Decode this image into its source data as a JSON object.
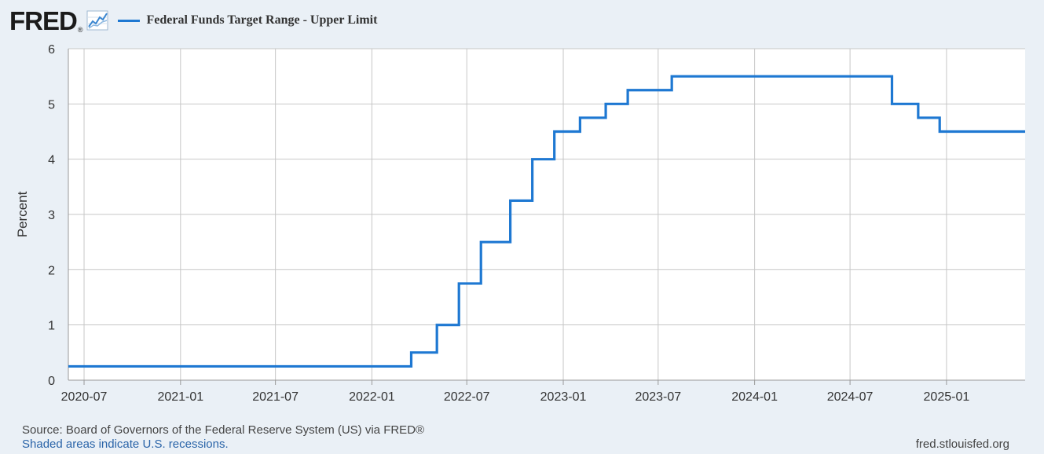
{
  "header": {
    "logo_text": "FRED",
    "logo_reg": "®",
    "logo_icon": "line-graph-icon",
    "series_color": "#1e78d2"
  },
  "footer": {
    "source": "Source: Board of Governors of the Federal Reserve System (US) via FRED®",
    "recessions": "Shaded areas indicate U.S. recessions.",
    "url": "fred.stlouisfed.org"
  },
  "chart_data": {
    "type": "line",
    "step": true,
    "title": "",
    "xlabel": "",
    "ylabel": "Percent",
    "ylim": [
      0,
      6
    ],
    "xlim": [
      "2020-06-01",
      "2025-05-31"
    ],
    "yticks": [
      "0",
      "1",
      "2",
      "3",
      "4",
      "5",
      "6"
    ],
    "xticks": [
      "2020-07",
      "2021-01",
      "2021-07",
      "2022-01",
      "2022-07",
      "2023-01",
      "2023-07",
      "2024-01",
      "2024-07",
      "2025-01"
    ],
    "grid": true,
    "legend_position": "top-left",
    "series": [
      {
        "name": "Federal Funds Target Range - Upper Limit",
        "color": "#1e78d2",
        "x": [
          "2020-06-01",
          "2022-03-17",
          "2022-05-05",
          "2022-06-16",
          "2022-07-28",
          "2022-09-22",
          "2022-11-03",
          "2022-12-15",
          "2023-02-02",
          "2023-03-23",
          "2023-05-04",
          "2023-07-27",
          "2024-09-19",
          "2024-11-08",
          "2024-12-19",
          "2025-05-31"
        ],
        "values": [
          0.25,
          0.5,
          1.0,
          1.75,
          2.5,
          3.25,
          4.0,
          4.5,
          4.75,
          5.0,
          5.25,
          5.5,
          5.0,
          4.75,
          4.5,
          4.5
        ]
      }
    ]
  }
}
